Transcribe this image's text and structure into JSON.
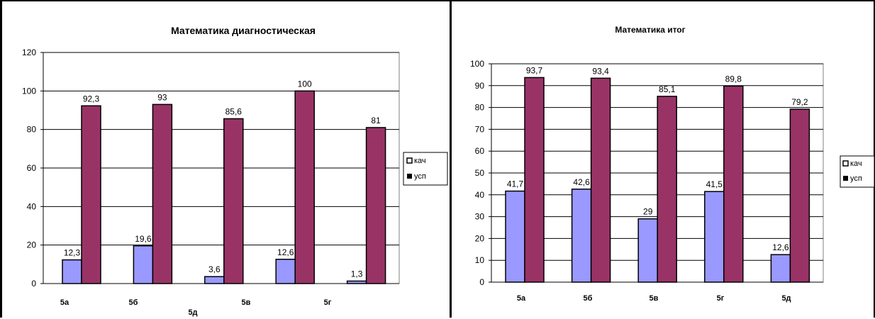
{
  "chart_data": [
    {
      "type": "bar",
      "title": "Математика диагностическая",
      "categories": [
        "5а",
        "5б",
        "5в",
        "5г",
        "5д"
      ],
      "series": [
        {
          "name": "кач",
          "values": [
            12.3,
            19.6,
            3.6,
            12.6,
            1.3
          ],
          "labels": [
            "12,3",
            "19,6",
            "3,6",
            "12,6",
            "1,3"
          ],
          "color": "#9999ff"
        },
        {
          "name": "усп",
          "values": [
            92.3,
            93,
            85.6,
            100,
            81
          ],
          "labels": [
            "92,3",
            "93",
            "85,6",
            "100",
            "81"
          ],
          "color": "#993366"
        }
      ],
      "ylim": [
        0,
        120
      ],
      "yticks": [
        0,
        20,
        40,
        60,
        80,
        100,
        120
      ],
      "grid": true,
      "legend": "right"
    },
    {
      "type": "bar",
      "title": "Математика итог",
      "categories": [
        "5а",
        "5б",
        "5в",
        "5г",
        "5д"
      ],
      "series": [
        {
          "name": "кач",
          "values": [
            41.7,
            42.6,
            29,
            41.5,
            12.6
          ],
          "labels": [
            "41,7",
            "42,6",
            "29",
            "41,5",
            "12,6"
          ],
          "color": "#9999ff"
        },
        {
          "name": "усп",
          "values": [
            93.7,
            93.4,
            85.1,
            89.8,
            79.2
          ],
          "labels": [
            "93,7",
            "93,4",
            "85,1",
            "89,8",
            "79,2"
          ],
          "color": "#993366"
        }
      ],
      "ylim": [
        0,
        100
      ],
      "yticks": [
        0,
        10,
        20,
        30,
        40,
        50,
        60,
        70,
        80,
        90,
        100
      ],
      "grid": true,
      "legend": "right"
    }
  ]
}
